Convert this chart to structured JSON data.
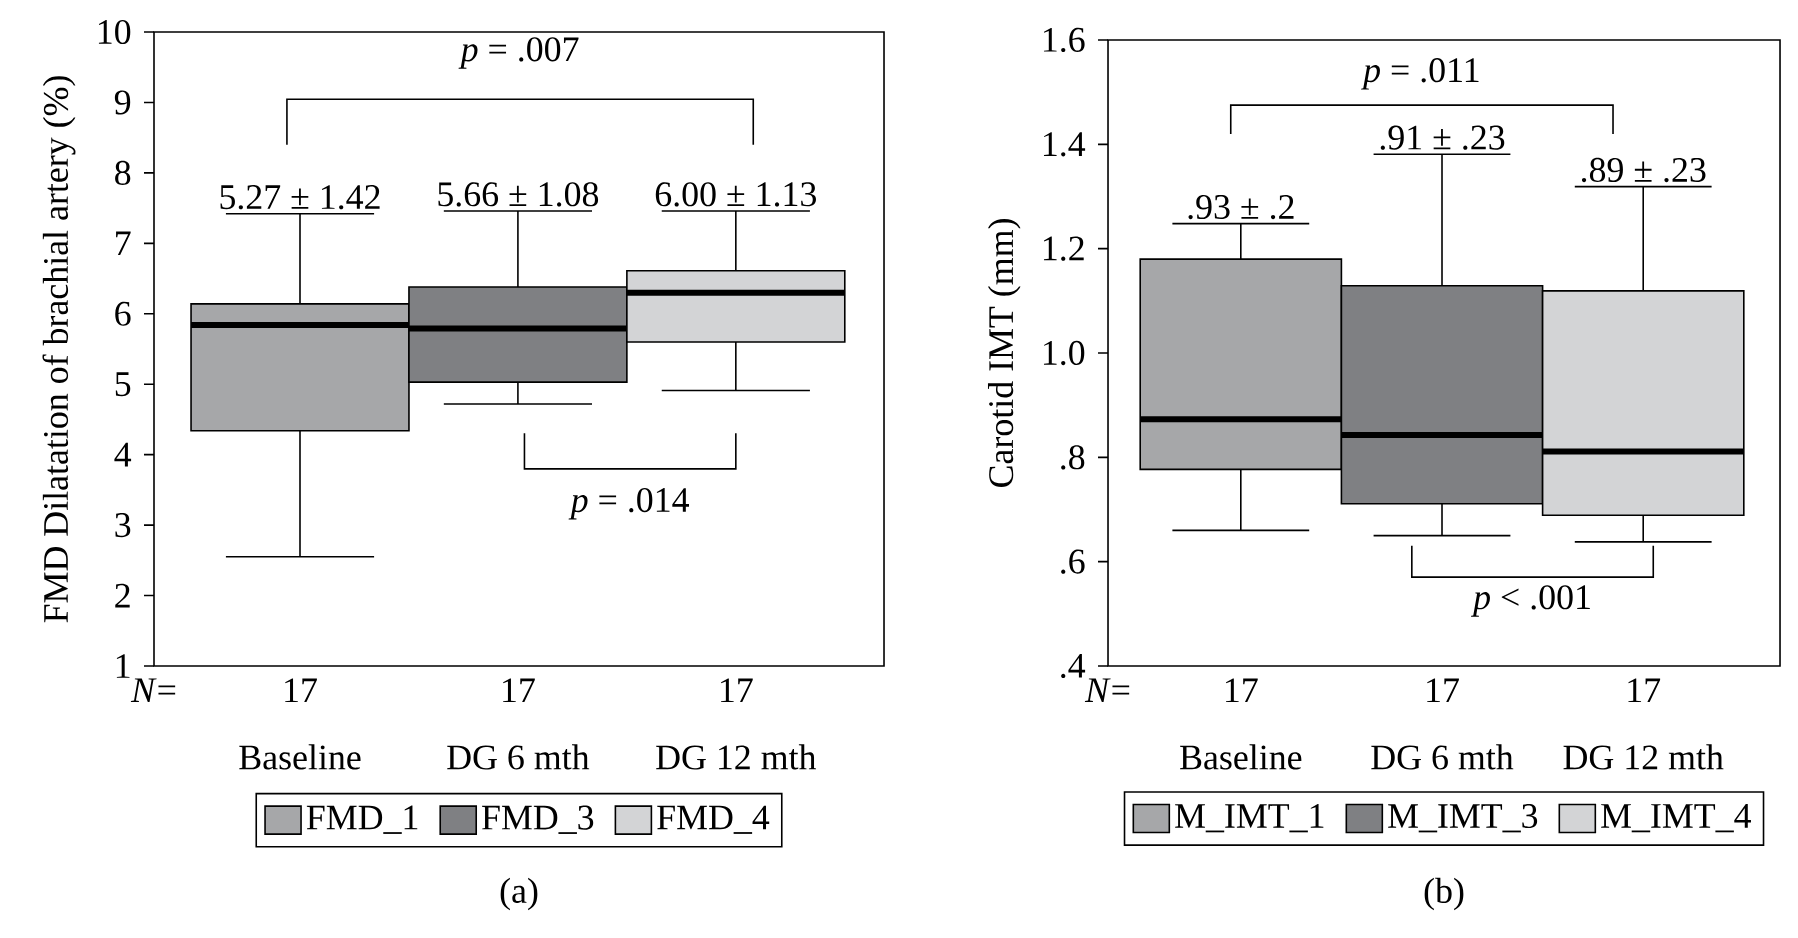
{
  "chart_data": [
    {
      "type": "box",
      "title": "(a)",
      "ylabel": "FMD Dilatation of brachial artery (%)",
      "categories": [
        "Baseline",
        "DG 6 mth",
        "DG 12 mth"
      ],
      "ylim": [
        1,
        10
      ],
      "yticks": [
        1,
        2,
        3,
        4,
        5,
        6,
        7,
        8,
        9,
        10
      ],
      "legend": "bottom",
      "series": [
        {
          "name": "FMD_1",
          "color": "#a6a7a9",
          "boxes": [
            {
              "low": 2.55,
              "q1": 4.34,
              "median": 5.84,
              "q3": 6.14,
              "high": 7.42
            },
            null,
            null
          ]
        },
        {
          "name": "FMD_3",
          "color": "#7f8083",
          "boxes": [
            null,
            {
              "low": 4.72,
              "q1": 5.03,
              "median": 5.79,
              "q3": 6.38,
              "high": 7.46
            },
            null
          ]
        },
        {
          "name": "FMD_4",
          "color": "#d3d4d6",
          "boxes": [
            null,
            null,
            {
              "low": 4.91,
              "q1": 5.6,
              "median": 6.3,
              "q3": 6.61,
              "high": 7.46
            }
          ]
        }
      ],
      "annotations": [
        "*N*=",
        "17",
        "17",
        "17",
        "5.27 ± 1.42",
        "5.66 ± 1.08",
        "6.00 ± 1.13",
        "*p* = .007",
        "*p* = .014"
      ]
    },
    {
      "type": "box",
      "title": "(b)",
      "ylabel": "Carotid IMT (mm)",
      "categories": [
        "Baseline",
        "DG 6 mth",
        "DG 12 mth"
      ],
      "ylim": [
        0.4,
        1.6
      ],
      "yticks": [
        {
          "value": 0.4,
          "label": ".4"
        },
        {
          "value": 0.6,
          "label": ".6"
        },
        {
          "value": 0.8,
          "label": ".8"
        },
        {
          "value": 1.0,
          "label": "1.0"
        },
        {
          "value": 1.2,
          "label": "1.2"
        },
        {
          "value": 1.4,
          "label": "1.4"
        },
        {
          "value": 1.6,
          "label": "1.6"
        }
      ],
      "legend": "bottom",
      "series": [
        {
          "name": "M_IMT_1",
          "color": "#a6a7a9",
          "boxes": [
            {
              "low": 0.66,
              "q1": 0.777,
              "median": 0.873,
              "q3": 1.18,
              "high": 1.248
            },
            null,
            null
          ]
        },
        {
          "name": "M_IMT_3",
          "color": "#7f8083",
          "boxes": [
            null,
            {
              "low": 0.65,
              "q1": 0.711,
              "median": 0.843,
              "q3": 1.129,
              "high": 1.381
            },
            null
          ]
        },
        {
          "name": "M_IMT_4",
          "color": "#d3d4d6",
          "boxes": [
            null,
            null,
            {
              "low": 0.638,
              "q1": 0.689,
              "median": 0.811,
              "q3": 1.119,
              "high": 1.319
            }
          ]
        }
      ],
      "annotations": [
        "*N*=",
        "17",
        "17",
        "17",
        ".93 ± .2",
        ".91 ± .23",
        ".89 ± .23",
        "*p* = .011",
        "*p* < .001"
      ]
    }
  ]
}
